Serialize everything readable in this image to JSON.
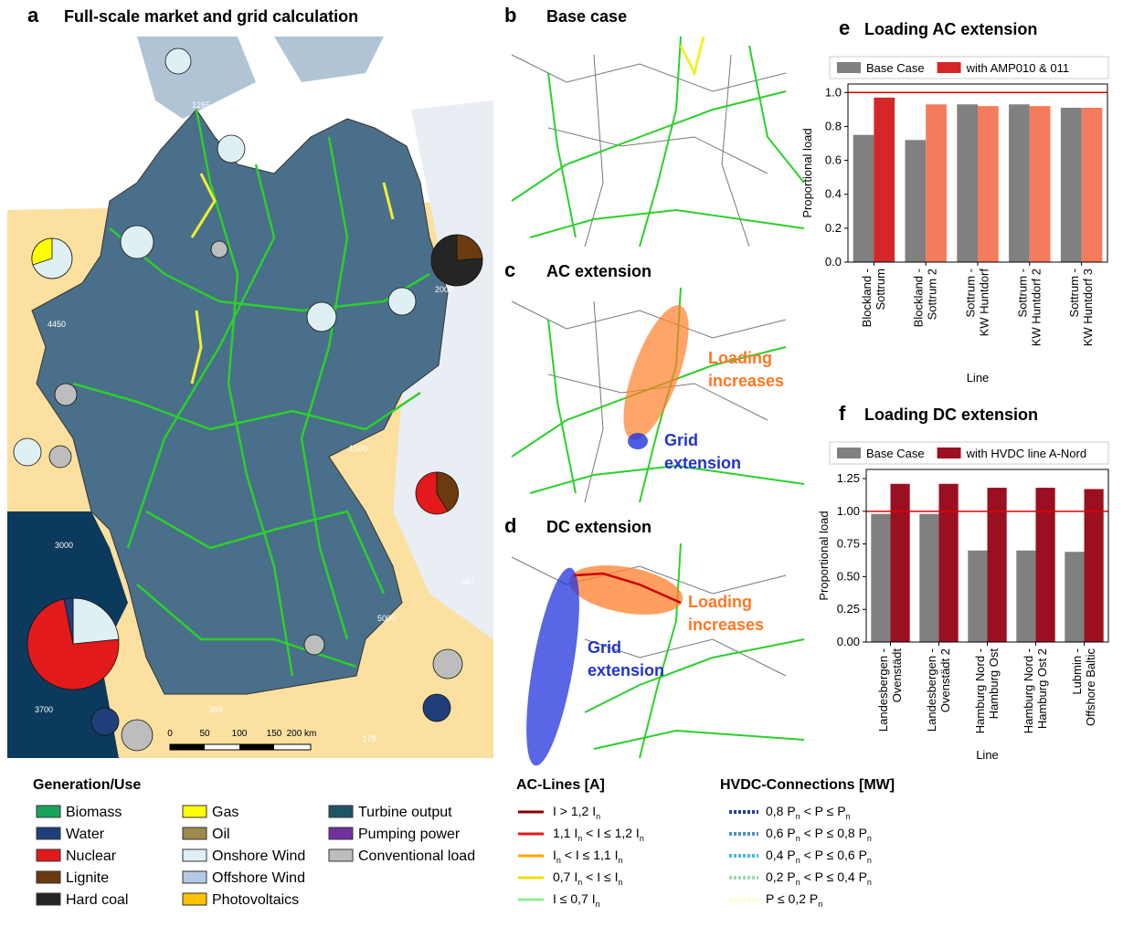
{
  "panel_a": {
    "letter": "a",
    "title": "Full-scale market and grid calculation",
    "flow_labels": [
      "1265",
      "4450",
      "2000",
      "1500",
      "3000",
      "687",
      "5000",
      "3700",
      "369",
      "178"
    ],
    "scale_labels": [
      "0",
      "50",
      "100",
      "150",
      "200 km"
    ]
  },
  "panel_b": {
    "letter": "b",
    "title": "Base case"
  },
  "panel_c": {
    "letter": "c",
    "title": "AC extension",
    "note_loading": [
      "Loading",
      "increases"
    ],
    "note_grid": [
      "Grid",
      "extension"
    ]
  },
  "panel_d": {
    "letter": "d",
    "title": "DC extension",
    "note_loading": [
      "Loading",
      "increases"
    ],
    "note_grid": [
      "Grid",
      "extension"
    ]
  },
  "chart_data": [
    {
      "type": "bar",
      "letter": "e",
      "title": "Loading AC extension",
      "categories": [
        [
          "Blockland -",
          "Sottrum"
        ],
        [
          "Blockland -",
          "Sottrum 2"
        ],
        [
          "Sottrum -",
          "KW Huntdorf"
        ],
        [
          "Sottrum -",
          "KW Huntdorf 2"
        ],
        [
          "Sottrum -",
          "KW Huntdorf 3"
        ]
      ],
      "series": [
        {
          "name": "Base Case",
          "color": "#808080",
          "values": [
            0.75,
            0.72,
            0.93,
            0.93,
            0.91
          ]
        },
        {
          "name": "with AMP010 & 011",
          "color": "#d62728",
          "colors": [
            "#d62728",
            "#f47c5c",
            "#f47c5c",
            "#f47c5c",
            "#f47c5c"
          ],
          "values": [
            0.97,
            0.93,
            0.92,
            0.92,
            0.91
          ]
        }
      ],
      "ylabel": "Proportional load",
      "xlabel": "Line",
      "ylim": [
        0,
        1.05
      ],
      "yticks": [
        {
          "value": 0,
          "label": "0.0"
        },
        {
          "value": 0.2,
          "label": "0.2"
        },
        {
          "value": 0.4,
          "label": "0.4"
        },
        {
          "value": 0.6,
          "label": "0.6"
        },
        {
          "value": 0.8,
          "label": "0.8"
        },
        {
          "value": 1,
          "label": "1.0"
        }
      ],
      "hline": 1,
      "hline_color": "#e00000"
    },
    {
      "type": "bar",
      "letter": "f",
      "title": "Loading DC extension",
      "categories": [
        [
          "Landesbergen -",
          "Ovenstädt"
        ],
        [
          "Landesbergen -",
          "Ovenstädt 2"
        ],
        [
          "Hamburg Nord -",
          "Hamburg Ost"
        ],
        [
          "Hamburg Nord -",
          "Hamburg Ost 2"
        ],
        [
          "Lubmin -",
          "Offshore Baltic"
        ]
      ],
      "series": [
        {
          "name": "Base Case",
          "color": "#808080",
          "values": [
            0.98,
            0.98,
            0.7,
            0.7,
            0.69
          ]
        },
        {
          "name": "with HVDC line A-Nord",
          "color": "#9b1020",
          "values": [
            1.21,
            1.21,
            1.18,
            1.18,
            1.17
          ]
        }
      ],
      "ylabel": "Proportional load",
      "xlabel": "Line",
      "ylim": [
        0,
        1.32
      ],
      "yticks": [
        {
          "value": 0,
          "label": "0.00"
        },
        {
          "value": 0.25,
          "label": "0.25"
        },
        {
          "value": 0.5,
          "label": "0.50"
        },
        {
          "value": 0.75,
          "label": "0.75"
        },
        {
          "value": 1,
          "label": "1.00"
        },
        {
          "value": 1.25,
          "label": "1.25"
        }
      ],
      "hline": 1,
      "hline_color": "#e00000"
    }
  ],
  "legend_generation": {
    "title": "Generation/Use",
    "items": [
      {
        "name": "Biomass",
        "color": "#1aa35a"
      },
      {
        "name": "Water",
        "color": "#1f3f7a"
      },
      {
        "name": "Nuclear",
        "color": "#e31a1c"
      },
      {
        "name": "Lignite",
        "color": "#6b3a0e"
      },
      {
        "name": "Hard coal",
        "color": "#252525"
      },
      {
        "name": "Gas",
        "color": "#ffff00"
      },
      {
        "name": "Oil",
        "color": "#9b8a4a"
      },
      {
        "name": "Onshore Wind",
        "color": "#dff0f5"
      },
      {
        "name": "Offshore Wind",
        "color": "#b5c9e4"
      },
      {
        "name": "Photovoltaics",
        "color": "#ffc000"
      },
      {
        "name": "Turbine output",
        "color": "#1d5566"
      },
      {
        "name": "Pumping power",
        "color": "#7030a0"
      },
      {
        "name": "Conventional load",
        "color": "#bdbdbd"
      }
    ]
  },
  "legend_ac": {
    "title": "AC-Lines [A]",
    "items": [
      {
        "label": [
          "I > 1,2 I",
          "n"
        ],
        "color": "#8b0000"
      },
      {
        "label": [
          "1,1 I",
          "n",
          " < I ≤ 1,2 I",
          "n"
        ],
        "color": "#e31a1c"
      },
      {
        "label": [
          " I",
          "n",
          " < I ≤ 1,1 I",
          "n"
        ],
        "color": "#ffa500"
      },
      {
        "label": [
          "0,7 I",
          "n",
          " < I ≤ I",
          "n"
        ],
        "color": "#f0e000"
      },
      {
        "label": [
          "I ≤ 0,7 I",
          "n"
        ],
        "color": "#90ee90"
      }
    ]
  },
  "legend_hvdc": {
    "title": "HVDC-Connections [MW]",
    "items": [
      {
        "label": [
          "0,8 P",
          "n",
          " < P ≤ P",
          "n"
        ],
        "color": "#1f3f9a"
      },
      {
        "label": [
          "0,6 P",
          "n",
          " < P ≤ 0,8 P",
          "n"
        ],
        "color": "#4a90c8"
      },
      {
        "label": [
          "0,4 P",
          "n",
          " < P ≤ 0,6 P",
          "n"
        ],
        "color": "#40c0d8"
      },
      {
        "label": [
          "0,2 P",
          "n",
          " < P ≤ 0,4 P",
          "n"
        ],
        "color": "#a0d8b0"
      },
      {
        "label": [
          "P ≤ 0,2 P",
          "n"
        ],
        "color": "#ffffc8"
      }
    ]
  }
}
